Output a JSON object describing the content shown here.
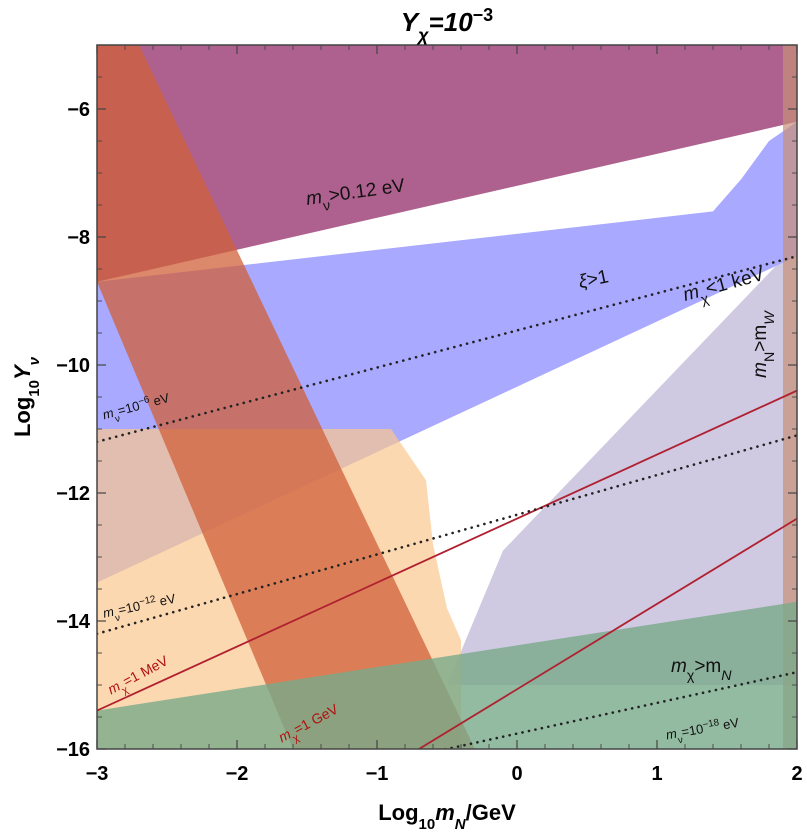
{
  "chart_data": {
    "type": "area",
    "title": "Y_χ=10^{-3}",
    "title_parts": {
      "base": "Y",
      "sub": "χ",
      "eq": "=10",
      "sup": "−3"
    },
    "xlabel_parts": {
      "pre": "Log",
      "sub": "10",
      "var": "m",
      "varsub": "N",
      "post": "/GeV"
    },
    "ylabel_parts": {
      "pre": "Log",
      "sub": "10",
      "var": "Y",
      "varsub": "ν"
    },
    "xlim": [
      -3,
      2
    ],
    "ylim": [
      -16,
      -5
    ],
    "xticks": [
      -3,
      -2,
      -1,
      0,
      1,
      2
    ],
    "yticks": [
      -16,
      -14,
      -12,
      -10,
      -8,
      -6
    ],
    "xtick_labels": [
      "−3",
      "−2",
      "−1",
      "0",
      "1",
      "2"
    ],
    "ytick_labels": [
      "−16",
      "−14",
      "−12",
      "−10",
      "−8",
      "−6"
    ],
    "grid": false,
    "regions": [
      {
        "key": "neutrino_mass",
        "color": "#9a3a72",
        "opacity": 0.8,
        "polygon": [
          [
            -3,
            -8.7
          ],
          [
            2,
            -6.2
          ],
          [
            2,
            -5
          ],
          [
            -3,
            -5
          ]
        ]
      },
      {
        "key": "xi",
        "color": "#8c8cff",
        "opacity": 0.75,
        "polygon": [
          [
            -3,
            -13.4
          ],
          [
            2,
            -8.3
          ],
          [
            2,
            -6.2
          ],
          [
            1.8,
            -6.5
          ],
          [
            1.6,
            -7.1
          ],
          [
            1.4,
            -7.6
          ],
          [
            -3,
            -8.7
          ]
        ]
      },
      {
        "key": "mN_gt_mW",
        "color": "#c7bfdc",
        "opacity": 0.85,
        "polygon": [
          [
            -0.5,
            -15.0
          ],
          [
            2,
            -15.0
          ],
          [
            2,
            -8.3
          ],
          [
            1.85,
            -8.45
          ],
          [
            -0.1,
            -12.9
          ]
        ]
      },
      {
        "key": "mN_gt_mW_strip",
        "color": "#c89078",
        "opacity": 0.7,
        "polygon": [
          [
            1.9,
            -16
          ],
          [
            2,
            -16
          ],
          [
            2,
            -5
          ],
          [
            1.9,
            -5
          ]
        ]
      },
      {
        "key": "orange",
        "color": "#fbc890",
        "opacity": 0.7,
        "polygon": [
          [
            -3,
            -16
          ],
          [
            -0.4,
            -16
          ],
          [
            -0.4,
            -14.3
          ],
          [
            -0.5,
            -13.8
          ],
          [
            -0.6,
            -12.8
          ],
          [
            -0.65,
            -11.8
          ],
          [
            -0.9,
            -11.0
          ],
          [
            -3,
            -11.0
          ]
        ]
      },
      {
        "key": "red_diag",
        "color": "#d0603a",
        "opacity": 0.75,
        "polygon": [
          [
            -3,
            -5
          ],
          [
            -2.7,
            -5
          ],
          [
            -0.3,
            -16
          ],
          [
            -1.6,
            -16
          ],
          [
            -3,
            -8.7
          ]
        ]
      },
      {
        "key": "green",
        "color": "#78aa8a",
        "opacity": 0.8,
        "polygon": [
          [
            -3,
            -16
          ],
          [
            2,
            -16
          ],
          [
            2,
            -13.7
          ],
          [
            -3,
            -15.4
          ]
        ]
      }
    ],
    "lines": [
      {
        "key": "mchi_1MeV",
        "style": "solid",
        "color": "#b02030",
        "points": [
          [
            -3,
            -15.4
          ],
          [
            2,
            -10.4
          ]
        ]
      },
      {
        "key": "mchi_1GeV",
        "style": "solid",
        "color": "#b02030",
        "points": [
          [
            -1,
            -16.4
          ],
          [
            2,
            -12.4
          ]
        ]
      },
      {
        "key": "mnu_1e-6",
        "style": "dotted",
        "color": "#222222",
        "points": [
          [
            -3,
            -11.2
          ],
          [
            2,
            -8.3
          ]
        ]
      },
      {
        "key": "mnu_1e-12",
        "style": "dotted",
        "color": "#222222",
        "points": [
          [
            -3,
            -14.2
          ],
          [
            2,
            -11.1
          ]
        ]
      },
      {
        "key": "mnu_1e-18",
        "style": "dotted",
        "color": "#222222",
        "points": [
          [
            -3,
            -17.2
          ],
          [
            2,
            -14.8
          ]
        ]
      }
    ],
    "annotations": [
      {
        "key": "mnu_012",
        "parts": {
          "var": "m",
          "sub": "ν",
          "rest": ">0.12 eV"
        },
        "x": -1.5,
        "y": -7.5,
        "angle": -8,
        "cls": "region-label"
      },
      {
        "key": "xi",
        "parts": {
          "var": "ξ",
          "sub": "",
          "rest": ">1"
        },
        "x": 0.45,
        "y": -8.8,
        "angle": -12,
        "cls": "region-label"
      },
      {
        "key": "mchi_1keV",
        "parts": {
          "var": "m",
          "sub": "χ",
          "rest": "<1 keV"
        },
        "x": 1.2,
        "y": -9.0,
        "angle": -15,
        "cls": "region-label"
      },
      {
        "key": "mN_gt_mW",
        "parts": {
          "var": "m",
          "sub": "N",
          "rest": ">m",
          "sub2": "W"
        },
        "x": 1.78,
        "y": -10.2,
        "angle": -90,
        "cls": "region-label"
      },
      {
        "key": "mchi_gt_mN",
        "parts": {
          "var": "m",
          "sub": "χ",
          "rest": ">m",
          "sub2": "N"
        },
        "x": 1.1,
        "y": -14.8,
        "angle": 0,
        "cls": "region-label"
      },
      {
        "key": "mnu_1e-6",
        "parts": {
          "var": "m",
          "sub": "ν",
          "rest": "=10",
          "sup": "−6",
          "tail": " eV"
        },
        "x": -2.95,
        "y": -10.85,
        "angle": -15,
        "cls": "small-label"
      },
      {
        "key": "mnu_1e-12",
        "parts": {
          "var": "m",
          "sub": "ν",
          "rest": "=10",
          "sup": "−12",
          "tail": " eV"
        },
        "x": -2.95,
        "y": -13.95,
        "angle": -12,
        "cls": "small-label"
      },
      {
        "key": "mnu_1e-18",
        "parts": {
          "var": "m",
          "sub": "ν",
          "rest": "=10",
          "sup": "−18",
          "tail": " eV"
        },
        "x": 1.07,
        "y": -15.85,
        "angle": -10,
        "cls": "small-label"
      },
      {
        "key": "mchi_1MeV",
        "parts": {
          "var": "m",
          "sub": "χ",
          "rest": "=1 MeV"
        },
        "x": -2.9,
        "y": -15.15,
        "angle": -28,
        "cls": "red-label"
      },
      {
        "key": "mchi_1GeV",
        "parts": {
          "var": "m",
          "sub": "χ",
          "rest": "=1 GeV"
        },
        "x": -1.68,
        "y": -15.9,
        "angle": -28,
        "cls": "red-label"
      }
    ]
  }
}
